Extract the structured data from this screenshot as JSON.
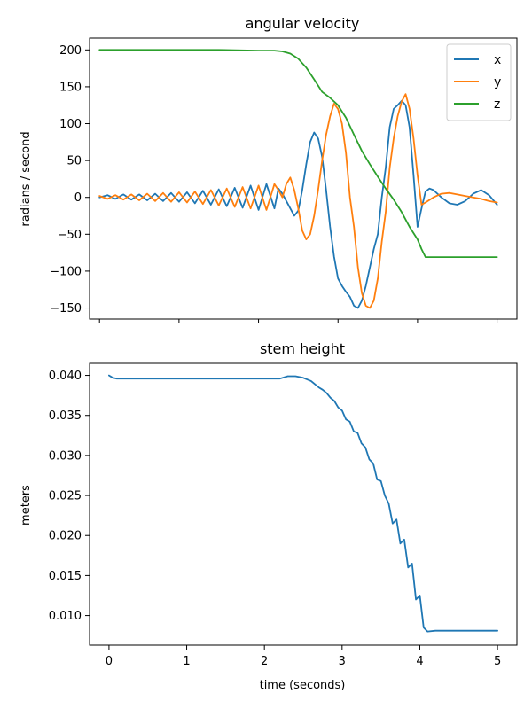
{
  "chart_data": [
    {
      "type": "line",
      "title": "angular velocity",
      "xlabel": "",
      "ylabel": "radians / second",
      "xlim": [
        -0.125,
        5.25
      ],
      "ylim": [
        -165,
        216
      ],
      "xticks": [
        0,
        1,
        2,
        3,
        4,
        5
      ],
      "xtick_labels_shown": false,
      "yticks": [
        200,
        150,
        100,
        50,
        0,
        -50,
        -100,
        -150
      ],
      "ytick_labels": [
        "200",
        "150",
        "100",
        "50",
        "0",
        "−50",
        "−100",
        "−150"
      ],
      "legend": {
        "placement": "top-right",
        "entries": [
          "x",
          "y",
          "z"
        ]
      },
      "grid": false,
      "series": [
        {
          "name": "x",
          "color": "#1f77b4",
          "x": [
            0.0,
            0.1,
            0.2,
            0.3,
            0.4,
            0.5,
            0.6,
            0.7,
            0.8,
            0.9,
            1.0,
            1.1,
            1.2,
            1.3,
            1.4,
            1.5,
            1.6,
            1.7,
            1.8,
            1.9,
            2.0,
            2.1,
            2.2,
            2.25,
            2.3,
            2.4,
            2.45,
            2.5,
            2.55,
            2.6,
            2.65,
            2.7,
            2.75,
            2.8,
            2.85,
            2.9,
            2.95,
            3.0,
            3.05,
            3.1,
            3.15,
            3.2,
            3.25,
            3.3,
            3.35,
            3.4,
            3.45,
            3.5,
            3.55,
            3.6,
            3.65,
            3.7,
            3.75,
            3.8,
            3.85,
            3.9,
            3.95,
            4.0,
            4.05,
            4.1,
            4.15,
            4.2,
            4.3,
            4.4,
            4.5,
            4.6,
            4.7,
            4.8,
            4.9,
            5.0
          ],
          "y": [
            0,
            3,
            -2,
            4,
            -3,
            4,
            -4,
            5,
            -5,
            6,
            -6,
            7,
            -8,
            9,
            -10,
            11,
            -12,
            13,
            -14,
            16,
            -17,
            18,
            -15,
            12,
            5,
            -15,
            -25,
            -18,
            10,
            45,
            75,
            88,
            80,
            55,
            10,
            -40,
            -80,
            -110,
            -120,
            -128,
            -135,
            -147,
            -150,
            -140,
            -120,
            -95,
            -70,
            -50,
            0,
            40,
            95,
            120,
            125,
            131,
            125,
            95,
            30,
            -40,
            -15,
            8,
            12,
            10,
            0,
            -8,
            -10,
            -5,
            5,
            10,
            3,
            -10
          ]
        },
        {
          "name": "y",
          "color": "#ff7f0e",
          "x": [
            0.0,
            0.1,
            0.2,
            0.3,
            0.4,
            0.5,
            0.6,
            0.7,
            0.8,
            0.9,
            1.0,
            1.1,
            1.2,
            1.3,
            1.4,
            1.5,
            1.6,
            1.7,
            1.8,
            1.9,
            2.0,
            2.1,
            2.2,
            2.25,
            2.3,
            2.35,
            2.4,
            2.45,
            2.5,
            2.55,
            2.6,
            2.65,
            2.7,
            2.75,
            2.8,
            2.85,
            2.9,
            2.95,
            3.0,
            3.05,
            3.1,
            3.15,
            3.2,
            3.25,
            3.3,
            3.35,
            3.4,
            3.45,
            3.5,
            3.55,
            3.6,
            3.65,
            3.7,
            3.75,
            3.8,
            3.85,
            3.9,
            3.95,
            4.0,
            4.05,
            4.1,
            4.2,
            4.3,
            4.4,
            4.5,
            4.6,
            4.7,
            4.8,
            4.9,
            5.0
          ],
          "y": [
            2,
            -2,
            3,
            -3,
            4,
            -4,
            5,
            -5,
            6,
            -6,
            7,
            -7,
            8,
            -9,
            10,
            -11,
            12,
            -13,
            14,
            -15,
            16,
            -17,
            18,
            10,
            0,
            18,
            27,
            10,
            -15,
            -45,
            -57,
            -50,
            -25,
            10,
            50,
            85,
            110,
            127,
            120,
            100,
            60,
            0,
            -40,
            -95,
            -130,
            -147,
            -150,
            -140,
            -110,
            -60,
            -20,
            40,
            80,
            110,
            130,
            140,
            120,
            80,
            30,
            -10,
            -7,
            0,
            5,
            6,
            4,
            2,
            0,
            -2,
            -5,
            -7
          ]
        },
        {
          "name": "z",
          "color": "#2ca02c",
          "x": [
            0.0,
            0.5,
            1.0,
            1.5,
            2.0,
            2.2,
            2.3,
            2.4,
            2.5,
            2.6,
            2.7,
            2.8,
            2.9,
            3.0,
            3.1,
            3.2,
            3.3,
            3.4,
            3.5,
            3.6,
            3.7,
            3.8,
            3.9,
            4.0,
            4.05,
            4.1,
            4.2,
            4.5,
            5.0
          ],
          "y": [
            200,
            200,
            200,
            200,
            199,
            199,
            198,
            195,
            188,
            176,
            160,
            143,
            135,
            125,
            108,
            85,
            63,
            45,
            28,
            12,
            -3,
            -20,
            -40,
            -57,
            -70,
            -81,
            -81,
            -81,
            -81
          ]
        }
      ]
    },
    {
      "type": "line",
      "title": "stem height",
      "xlabel": "time (seconds)",
      "ylabel": "meters",
      "xlim": [
        -0.25,
        5.25
      ],
      "ylim": [
        0.0063,
        0.0415
      ],
      "xticks": [
        0,
        1,
        2,
        3,
        4,
        5
      ],
      "xtick_labels": [
        "0",
        "1",
        "2",
        "3",
        "4",
        "5"
      ],
      "yticks": [
        0.04,
        0.035,
        0.03,
        0.025,
        0.02,
        0.015,
        0.01
      ],
      "ytick_labels": [
        "0.040",
        "0.035",
        "0.030",
        "0.025",
        "0.020",
        "0.015",
        "0.010"
      ],
      "grid": false,
      "series": [
        {
          "name": "",
          "color": "#1f77b4",
          "x": [
            0.0,
            0.05,
            0.1,
            0.5,
            1.0,
            1.5,
            2.0,
            2.2,
            2.3,
            2.4,
            2.5,
            2.6,
            2.7,
            2.75,
            2.8,
            2.85,
            2.9,
            2.95,
            3.0,
            3.05,
            3.1,
            3.15,
            3.2,
            3.25,
            3.3,
            3.35,
            3.4,
            3.45,
            3.5,
            3.55,
            3.6,
            3.65,
            3.7,
            3.75,
            3.8,
            3.85,
            3.9,
            3.95,
            4.0,
            4.05,
            4.1,
            4.2,
            4.5,
            5.0
          ],
          "y": [
            0.04,
            0.0397,
            0.0396,
            0.0396,
            0.0396,
            0.0396,
            0.0396,
            0.0396,
            0.0399,
            0.0399,
            0.0397,
            0.0393,
            0.0385,
            0.0382,
            0.0378,
            0.0372,
            0.0368,
            0.036,
            0.0356,
            0.0345,
            0.0342,
            0.033,
            0.0328,
            0.0315,
            0.031,
            0.0295,
            0.029,
            0.027,
            0.0268,
            0.025,
            0.024,
            0.0215,
            0.022,
            0.019,
            0.0195,
            0.016,
            0.0165,
            0.012,
            0.0125,
            0.0085,
            0.008,
            0.0081,
            0.0081,
            0.0081
          ]
        }
      ]
    }
  ]
}
